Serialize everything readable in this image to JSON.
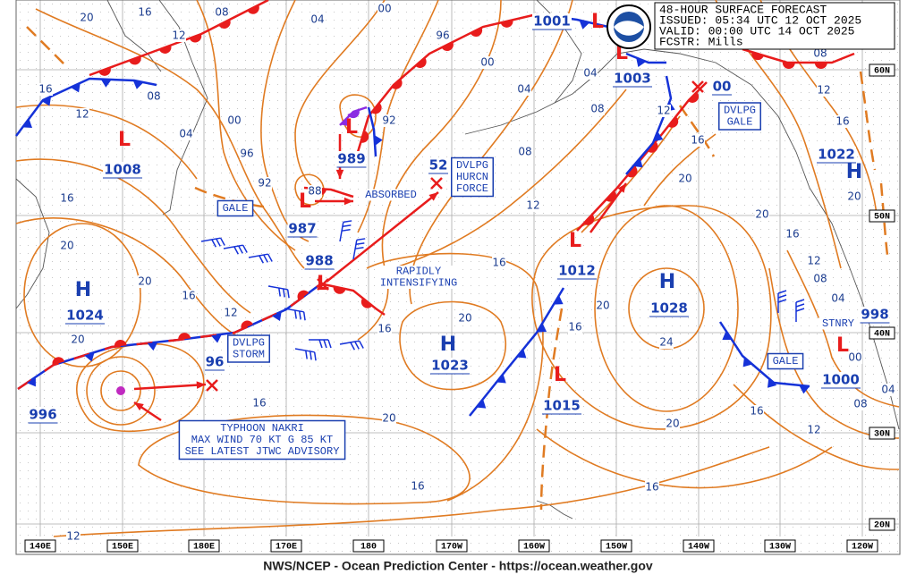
{
  "header": {
    "lines": [
      "48-HOUR SURFACE FORECAST",
      "ISSUED: 05:34 UTC 12 OCT 2025",
      "VALID:  00:00 UTC 14 OCT 2025",
      "FCSTR:  Mills"
    ]
  },
  "footer": "NWS/NCEP - Ocean Prediction Center - https://ocean.weather.gov",
  "longitudes": [
    "140E",
    "150E",
    "180E",
    "170E",
    "180",
    "170W",
    "160W",
    "150W",
    "140W",
    "130W",
    "120W"
  ],
  "latitudes": [
    "60N",
    "50N",
    "40N",
    "30N",
    "20N"
  ],
  "pressure_systems": [
    {
      "symbol": "L",
      "pressure": "1008"
    },
    {
      "symbol": "L",
      "pressure": "989"
    },
    {
      "symbol": "L",
      "pressure": "987"
    },
    {
      "symbol": "L",
      "pressure": "988"
    },
    {
      "symbol": "H",
      "pressure": "1024"
    },
    {
      "pressure": "996"
    },
    {
      "pressure": "96"
    },
    {
      "pressure": "52"
    },
    {
      "symbol": "L",
      "pressure": "1001"
    },
    {
      "symbol": "L",
      "pressure": "1003"
    },
    {
      "pressure": "00"
    },
    {
      "symbol": "H",
      "pressure": "1022"
    },
    {
      "symbol": "L",
      "pressure": "1012"
    },
    {
      "symbol": "H",
      "pressure": "1028"
    },
    {
      "symbol": "H",
      "pressure": "1023"
    },
    {
      "symbol": "L",
      "pressure": "1015"
    },
    {
      "symbol": "L",
      "pressure": "998"
    },
    {
      "pressure": "1000"
    }
  ],
  "isobar_labels": [
    "20",
    "16",
    "12",
    "08",
    "04",
    "00",
    "96",
    "00",
    "04",
    "08",
    "12",
    "16",
    "20",
    "20",
    "16",
    "12",
    "08",
    "04",
    "00",
    "04",
    "08",
    "12",
    "16",
    "20",
    "24",
    "20",
    "16",
    "12",
    "08",
    "04",
    "16",
    "20",
    "16",
    "20",
    "16",
    "16",
    "12",
    "16",
    "12",
    "16",
    "20",
    "20",
    "20",
    "16",
    "12",
    "16",
    "08",
    "04",
    "00",
    "96",
    "92",
    "92",
    "88",
    "08",
    "12",
    "16",
    "20"
  ],
  "annotations": [
    {
      "lines": [
        "GALE"
      ]
    },
    {
      "lines": [
        "DVLPG",
        "STORM"
      ]
    },
    {
      "lines": [
        "ABSORBED"
      ]
    },
    {
      "lines": [
        "RAPIDLY",
        "INTENSIFYING"
      ]
    },
    {
      "lines": [
        "DVLPG",
        "HURCN",
        "FORCE"
      ]
    },
    {
      "lines": [
        "DVLPG",
        "GALE"
      ]
    },
    {
      "lines": [
        "STNRY"
      ]
    },
    {
      "lines": [
        "GALE"
      ]
    },
    {
      "lines": [
        "TYPHOON NAKRI",
        "MAX WIND 70 KT G 85 KT",
        "SEE LATEST JTWC ADVISORY"
      ]
    }
  ]
}
